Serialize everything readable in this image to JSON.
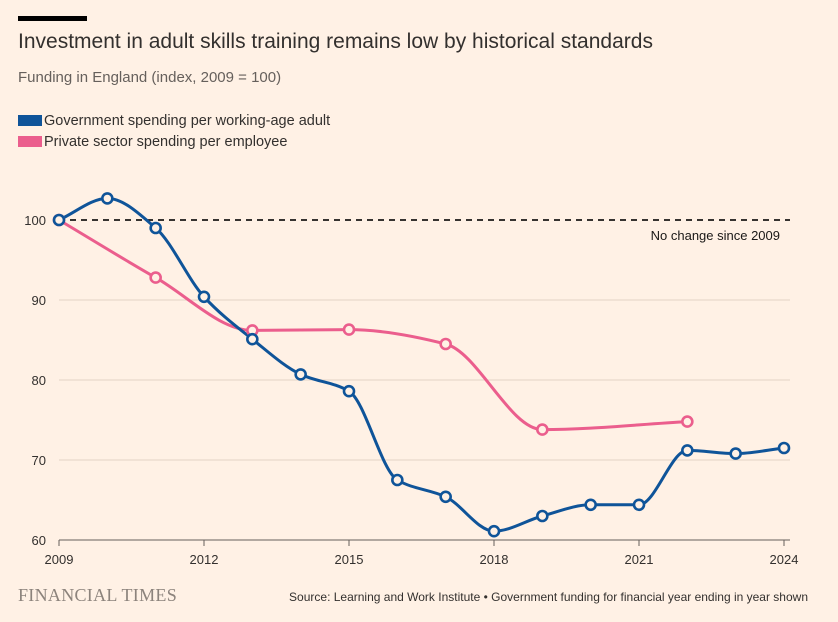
{
  "header": {
    "title": "Investment in adult skills training remains low by historical standards",
    "subtitle": "Funding in England (index, 2009 = 100)"
  },
  "legend": [
    {
      "label": "Government spending per working-age adult",
      "color": "#0f5499"
    },
    {
      "label": "Private sector spending per employee",
      "color": "#eb5e8d"
    }
  ],
  "footer": {
    "logo": "FINANCIAL TIMES",
    "source": "Source: Learning and Work Institute • Government funding for financial year ending in year shown"
  },
  "chart_data": {
    "type": "line",
    "title": "Investment in adult skills training remains low by historical standards",
    "subtitle": "Funding in England (index, 2009 = 100)",
    "xlabel": "",
    "ylabel": "",
    "xlim": [
      2009,
      2024
    ],
    "ylim": [
      60,
      100
    ],
    "x_ticks": [
      2009,
      2012,
      2015,
      2018,
      2021,
      2024
    ],
    "y_ticks": [
      60,
      70,
      80,
      90,
      100
    ],
    "grid": true,
    "legend_position": "top-left",
    "reference_line": {
      "y": 100,
      "label": "No change since 2009"
    },
    "series": [
      {
        "name": "Government spending per working-age adult",
        "color": "#0f5499",
        "x": [
          2009,
          2010,
          2011,
          2012,
          2013,
          2014,
          2015,
          2016,
          2017,
          2018,
          2019,
          2020,
          2021,
          2022,
          2023,
          2024
        ],
        "values": [
          100,
          102.7,
          99,
          90.4,
          85.1,
          80.7,
          78.6,
          67.5,
          65.4,
          61.1,
          63,
          64.4,
          64.4,
          71.2,
          70.8,
          71.5
        ]
      },
      {
        "name": "Private sector spending per employee",
        "color": "#eb5e8d",
        "x": [
          2009,
          2011,
          2013,
          2015,
          2017,
          2019,
          2022
        ],
        "values": [
          100,
          92.8,
          86.2,
          86.3,
          84.5,
          73.8,
          74.8
        ]
      }
    ]
  }
}
